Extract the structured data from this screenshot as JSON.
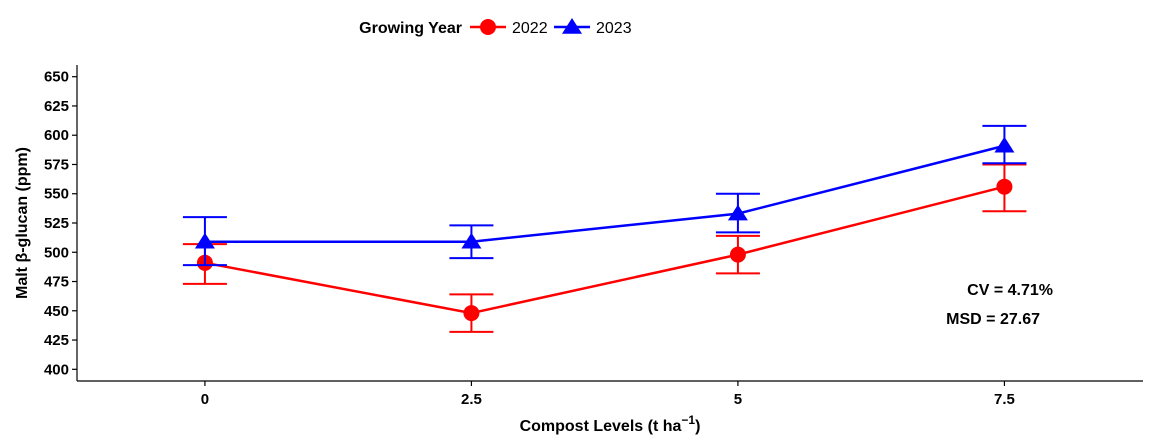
{
  "chart_data": {
    "type": "line",
    "xlabel": "Compost Levels (t ha",
    "xlabel_sup": "−1",
    "xlabel_close": ")",
    "ylabel": "Malt β-glucan (ppm)",
    "categories": [
      "0",
      "2.5",
      "5",
      "7.5"
    ],
    "x": [
      0,
      2.5,
      5,
      7.5
    ],
    "xlim": [
      -1.2,
      8.8
    ],
    "ylim": [
      390,
      660
    ],
    "yticks": [
      400,
      425,
      450,
      475,
      500,
      525,
      550,
      575,
      600,
      625,
      650
    ],
    "grid": false,
    "legend_position": "top",
    "legend_title": "Growing Year",
    "series": [
      {
        "name": "2022",
        "color": "#ff0000",
        "marker": "circle",
        "values": [
          491,
          448,
          498,
          556
        ],
        "err_low": [
          473,
          432,
          482,
          535
        ],
        "err_high": [
          507,
          464,
          514,
          575
        ]
      },
      {
        "name": "2023",
        "color": "#0000ff",
        "marker": "triangle",
        "values": [
          509,
          509,
          533,
          591
        ],
        "err_low": [
          489,
          495,
          517,
          576
        ],
        "err_high": [
          530,
          523,
          550,
          608
        ]
      }
    ],
    "annotations": [
      "CV = 4.71%",
      "MSD = 27.67"
    ]
  }
}
